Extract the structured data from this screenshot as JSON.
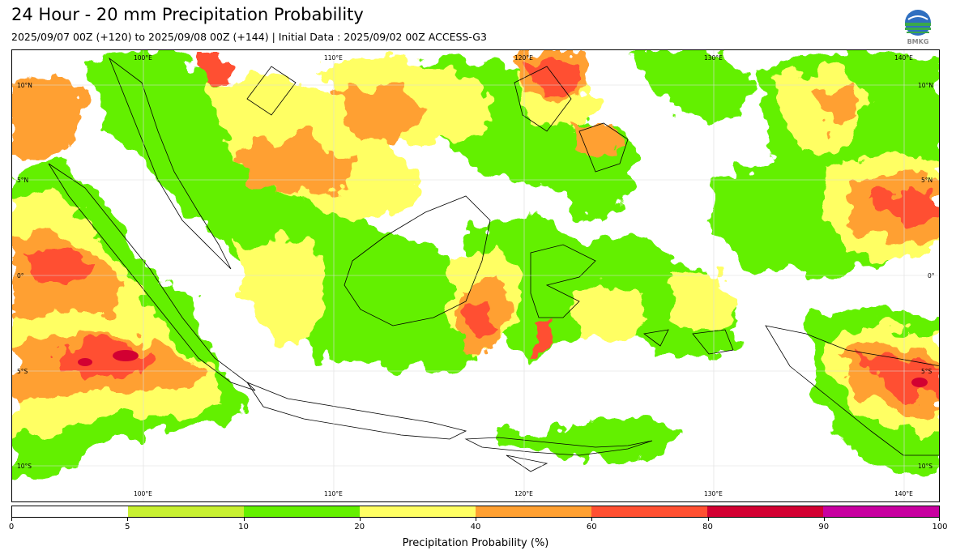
{
  "header": {
    "title": "24 Hour - 20 mm Precipitation Probability",
    "subtitle": "2025/09/07 00Z (+120) to 2025/09/08 00Z (+144) | Initial Data : 2025/09/02 00Z ACCESS-G3",
    "logo_text": "BMKG"
  },
  "map": {
    "region": "Indonesia",
    "lon_labels": [
      "100°E",
      "110°E",
      "120°E",
      "130°E",
      "140°E"
    ],
    "lat_labels": [
      "10°N",
      "5°N",
      "0°",
      "5°S",
      "10°S"
    ],
    "extent": {
      "lon_min": 93.2,
      "lon_max": 142.0,
      "lat_min": -11.5,
      "lat_max": 11.9
    }
  },
  "colorbar": {
    "label": "Precipitation Probability (%)",
    "ticks": [
      "0",
      "5",
      "10",
      "20",
      "40",
      "60",
      "80",
      "90",
      "100"
    ],
    "colors": [
      "#ffffff",
      "#c8f032",
      "#64f000",
      "#ffff64",
      "#ffa032",
      "#ff5032",
      "#d20032",
      "#c800a0"
    ]
  }
}
